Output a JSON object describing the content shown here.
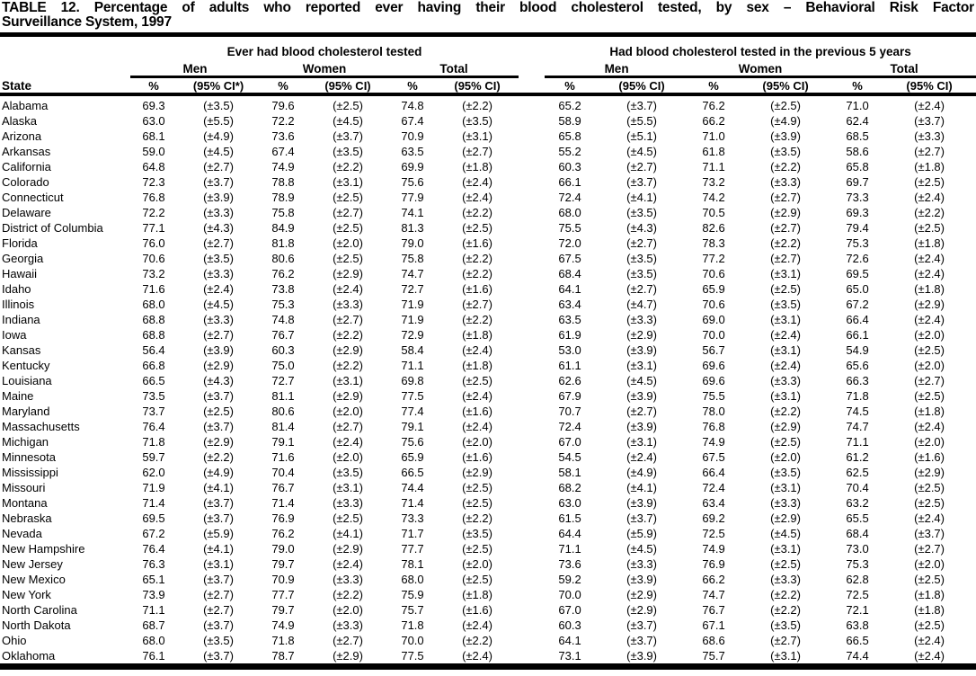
{
  "title": {
    "line1": "TABLE 12. Percentage of adults who reported ever having their blood cholesterol tested, by sex – Behavioral Risk Factor",
    "line2": "Surveillance System, 1997"
  },
  "table": {
    "state_header": "State",
    "groups": [
      {
        "label": "Ever had blood cholesterol tested",
        "subgroups": [
          "Men",
          "Women",
          "Total"
        ],
        "col_headers": [
          "%",
          "(95% CI*)",
          "%",
          "(95% CI)",
          "%",
          "(95% CI)"
        ]
      },
      {
        "label": "Had blood cholesterol tested in the previous 5 years",
        "subgroups": [
          "Men",
          "Women",
          "Total"
        ],
        "col_headers": [
          "%",
          "(95% CI)",
          "%",
          "(95% CI)",
          "%",
          "(95% CI)"
        ]
      }
    ],
    "rows": [
      {
        "state": "Alabama",
        "values": [
          "69.3",
          "(±3.5)",
          "79.6",
          "(±2.5)",
          "74.8",
          "(±2.2)",
          "65.2",
          "(±3.7)",
          "76.2",
          "(±2.5)",
          "71.0",
          "(±2.4)"
        ]
      },
      {
        "state": "Alaska",
        "values": [
          "63.0",
          "(±5.5)",
          "72.2",
          "(±4.5)",
          "67.4",
          "(±3.5)",
          "58.9",
          "(±5.5)",
          "66.2",
          "(±4.9)",
          "62.4",
          "(±3.7)"
        ]
      },
      {
        "state": "Arizona",
        "values": [
          "68.1",
          "(±4.9)",
          "73.6",
          "(±3.7)",
          "70.9",
          "(±3.1)",
          "65.8",
          "(±5.1)",
          "71.0",
          "(±3.9)",
          "68.5",
          "(±3.3)"
        ]
      },
      {
        "state": "Arkansas",
        "values": [
          "59.0",
          "(±4.5)",
          "67.4",
          "(±3.5)",
          "63.5",
          "(±2.7)",
          "55.2",
          "(±4.5)",
          "61.8",
          "(±3.5)",
          "58.6",
          "(±2.7)"
        ]
      },
      {
        "state": "California",
        "values": [
          "64.8",
          "(±2.7)",
          "74.9",
          "(±2.2)",
          "69.9",
          "(±1.8)",
          "60.3",
          "(±2.7)",
          "71.1",
          "(±2.2)",
          "65.8",
          "(±1.8)"
        ]
      },
      {
        "state": "Colorado",
        "values": [
          "72.3",
          "(±3.7)",
          "78.8",
          "(±3.1)",
          "75.6",
          "(±2.4)",
          "66.1",
          "(±3.7)",
          "73.2",
          "(±3.3)",
          "69.7",
          "(±2.5)"
        ]
      },
      {
        "state": "Connecticut",
        "values": [
          "76.8",
          "(±3.9)",
          "78.9",
          "(±2.5)",
          "77.9",
          "(±2.4)",
          "72.4",
          "(±4.1)",
          "74.2",
          "(±2.7)",
          "73.3",
          "(±2.4)"
        ]
      },
      {
        "state": "Delaware",
        "values": [
          "72.2",
          "(±3.3)",
          "75.8",
          "(±2.7)",
          "74.1",
          "(±2.2)",
          "68.0",
          "(±3.5)",
          "70.5",
          "(±2.9)",
          "69.3",
          "(±2.2)"
        ]
      },
      {
        "state": "District of Columbia",
        "values": [
          "77.1",
          "(±4.3)",
          "84.9",
          "(±2.5)",
          "81.3",
          "(±2.5)",
          "75.5",
          "(±4.3)",
          "82.6",
          "(±2.7)",
          "79.4",
          "(±2.5)"
        ]
      },
      {
        "state": "Florida",
        "values": [
          "76.0",
          "(±2.7)",
          "81.8",
          "(±2.0)",
          "79.0",
          "(±1.6)",
          "72.0",
          "(±2.7)",
          "78.3",
          "(±2.2)",
          "75.3",
          "(±1.8)"
        ]
      },
      {
        "state": "Georgia",
        "values": [
          "70.6",
          "(±3.5)",
          "80.6",
          "(±2.5)",
          "75.8",
          "(±2.2)",
          "67.5",
          "(±3.5)",
          "77.2",
          "(±2.7)",
          "72.6",
          "(±2.4)"
        ]
      },
      {
        "state": "Hawaii",
        "values": [
          "73.2",
          "(±3.3)",
          "76.2",
          "(±2.9)",
          "74.7",
          "(±2.2)",
          "68.4",
          "(±3.5)",
          "70.6",
          "(±3.1)",
          "69.5",
          "(±2.4)"
        ]
      },
      {
        "state": "Idaho",
        "values": [
          "71.6",
          "(±2.4)",
          "73.8",
          "(±2.4)",
          "72.7",
          "(±1.6)",
          "64.1",
          "(±2.7)",
          "65.9",
          "(±2.5)",
          "65.0",
          "(±1.8)"
        ]
      },
      {
        "state": "Illinois",
        "values": [
          "68.0",
          "(±4.5)",
          "75.3",
          "(±3.3)",
          "71.9",
          "(±2.7)",
          "63.4",
          "(±4.7)",
          "70.6",
          "(±3.5)",
          "67.2",
          "(±2.9)"
        ]
      },
      {
        "state": "Indiana",
        "values": [
          "68.8",
          "(±3.3)",
          "74.8",
          "(±2.7)",
          "71.9",
          "(±2.2)",
          "63.5",
          "(±3.3)",
          "69.0",
          "(±3.1)",
          "66.4",
          "(±2.4)"
        ]
      },
      {
        "state": "Iowa",
        "values": [
          "68.8",
          "(±2.7)",
          "76.7",
          "(±2.2)",
          "72.9",
          "(±1.8)",
          "61.9",
          "(±2.9)",
          "70.0",
          "(±2.4)",
          "66.1",
          "(±2.0)"
        ]
      },
      {
        "state": "Kansas",
        "values": [
          "56.4",
          "(±3.9)",
          "60.3",
          "(±2.9)",
          "58.4",
          "(±2.4)",
          "53.0",
          "(±3.9)",
          "56.7",
          "(±3.1)",
          "54.9",
          "(±2.5)"
        ]
      },
      {
        "state": "Kentucky",
        "values": [
          "66.8",
          "(±2.9)",
          "75.0",
          "(±2.2)",
          "71.1",
          "(±1.8)",
          "61.1",
          "(±3.1)",
          "69.6",
          "(±2.4)",
          "65.6",
          "(±2.0)"
        ]
      },
      {
        "state": "Louisiana",
        "values": [
          "66.5",
          "(±4.3)",
          "72.7",
          "(±3.1)",
          "69.8",
          "(±2.5)",
          "62.6",
          "(±4.5)",
          "69.6",
          "(±3.3)",
          "66.3",
          "(±2.7)"
        ]
      },
      {
        "state": "Maine",
        "values": [
          "73.5",
          "(±3.7)",
          "81.1",
          "(±2.9)",
          "77.5",
          "(±2.4)",
          "67.9",
          "(±3.9)",
          "75.5",
          "(±3.1)",
          "71.8",
          "(±2.5)"
        ]
      },
      {
        "state": "Maryland",
        "values": [
          "73.7",
          "(±2.5)",
          "80.6",
          "(±2.0)",
          "77.4",
          "(±1.6)",
          "70.7",
          "(±2.7)",
          "78.0",
          "(±2.2)",
          "74.5",
          "(±1.8)"
        ]
      },
      {
        "state": "Massachusetts",
        "values": [
          "76.4",
          "(±3.7)",
          "81.4",
          "(±2.7)",
          "79.1",
          "(±2.4)",
          "72.4",
          "(±3.9)",
          "76.8",
          "(±2.9)",
          "74.7",
          "(±2.4)"
        ]
      },
      {
        "state": "Michigan",
        "values": [
          "71.8",
          "(±2.9)",
          "79.1",
          "(±2.4)",
          "75.6",
          "(±2.0)",
          "67.0",
          "(±3.1)",
          "74.9",
          "(±2.5)",
          "71.1",
          "(±2.0)"
        ]
      },
      {
        "state": "Minnesota",
        "values": [
          "59.7",
          "(±2.2)",
          "71.6",
          "(±2.0)",
          "65.9",
          "(±1.6)",
          "54.5",
          "(±2.4)",
          "67.5",
          "(±2.0)",
          "61.2",
          "(±1.6)"
        ]
      },
      {
        "state": "Mississippi",
        "values": [
          "62.0",
          "(±4.9)",
          "70.4",
          "(±3.5)",
          "66.5",
          "(±2.9)",
          "58.1",
          "(±4.9)",
          "66.4",
          "(±3.5)",
          "62.5",
          "(±2.9)"
        ]
      },
      {
        "state": "Missouri",
        "values": [
          "71.9",
          "(±4.1)",
          "76.7",
          "(±3.1)",
          "74.4",
          "(±2.5)",
          "68.2",
          "(±4.1)",
          "72.4",
          "(±3.1)",
          "70.4",
          "(±2.5)"
        ]
      },
      {
        "state": "Montana",
        "values": [
          "71.4",
          "(±3.7)",
          "71.4",
          "(±3.3)",
          "71.4",
          "(±2.5)",
          "63.0",
          "(±3.9)",
          "63.4",
          "(±3.3)",
          "63.2",
          "(±2.5)"
        ]
      },
      {
        "state": "Nebraska",
        "values": [
          "69.5",
          "(±3.7)",
          "76.9",
          "(±2.5)",
          "73.3",
          "(±2.2)",
          "61.5",
          "(±3.7)",
          "69.2",
          "(±2.9)",
          "65.5",
          "(±2.4)"
        ]
      },
      {
        "state": "Nevada",
        "values": [
          "67.2",
          "(±5.9)",
          "76.2",
          "(±4.1)",
          "71.7",
          "(±3.5)",
          "64.4",
          "(±5.9)",
          "72.5",
          "(±4.5)",
          "68.4",
          "(±3.7)"
        ]
      },
      {
        "state": "New Hampshire",
        "values": [
          "76.4",
          "(±4.1)",
          "79.0",
          "(±2.9)",
          "77.7",
          "(±2.5)",
          "71.1",
          "(±4.5)",
          "74.9",
          "(±3.1)",
          "73.0",
          "(±2.7)"
        ]
      },
      {
        "state": "New Jersey",
        "values": [
          "76.3",
          "(±3.1)",
          "79.7",
          "(±2.4)",
          "78.1",
          "(±2.0)",
          "73.6",
          "(±3.3)",
          "76.9",
          "(±2.5)",
          "75.3",
          "(±2.0)"
        ]
      },
      {
        "state": "New Mexico",
        "values": [
          "65.1",
          "(±3.7)",
          "70.9",
          "(±3.3)",
          "68.0",
          "(±2.5)",
          "59.2",
          "(±3.9)",
          "66.2",
          "(±3.3)",
          "62.8",
          "(±2.5)"
        ]
      },
      {
        "state": "New York",
        "values": [
          "73.9",
          "(±2.7)",
          "77.7",
          "(±2.2)",
          "75.9",
          "(±1.8)",
          "70.0",
          "(±2.9)",
          "74.7",
          "(±2.2)",
          "72.5",
          "(±1.8)"
        ]
      },
      {
        "state": "North Carolina",
        "values": [
          "71.1",
          "(±2.7)",
          "79.7",
          "(±2.0)",
          "75.7",
          "(±1.6)",
          "67.0",
          "(±2.9)",
          "76.7",
          "(±2.2)",
          "72.1",
          "(±1.8)"
        ]
      },
      {
        "state": "North Dakota",
        "values": [
          "68.7",
          "(±3.7)",
          "74.9",
          "(±3.3)",
          "71.8",
          "(±2.4)",
          "60.3",
          "(±3.7)",
          "67.1",
          "(±3.5)",
          "63.8",
          "(±2.5)"
        ]
      },
      {
        "state": "Ohio",
        "values": [
          "68.0",
          "(±3.5)",
          "71.8",
          "(±2.7)",
          "70.0",
          "(±2.2)",
          "64.1",
          "(±3.7)",
          "68.6",
          "(±2.7)",
          "66.5",
          "(±2.4)"
        ]
      },
      {
        "state": "Oklahoma",
        "values": [
          "76.1",
          "(±3.7)",
          "78.7",
          "(±2.9)",
          "77.5",
          "(±2.4)",
          "73.1",
          "(±3.9)",
          "75.7",
          "(±3.1)",
          "74.4",
          "(±2.4)"
        ]
      }
    ]
  }
}
